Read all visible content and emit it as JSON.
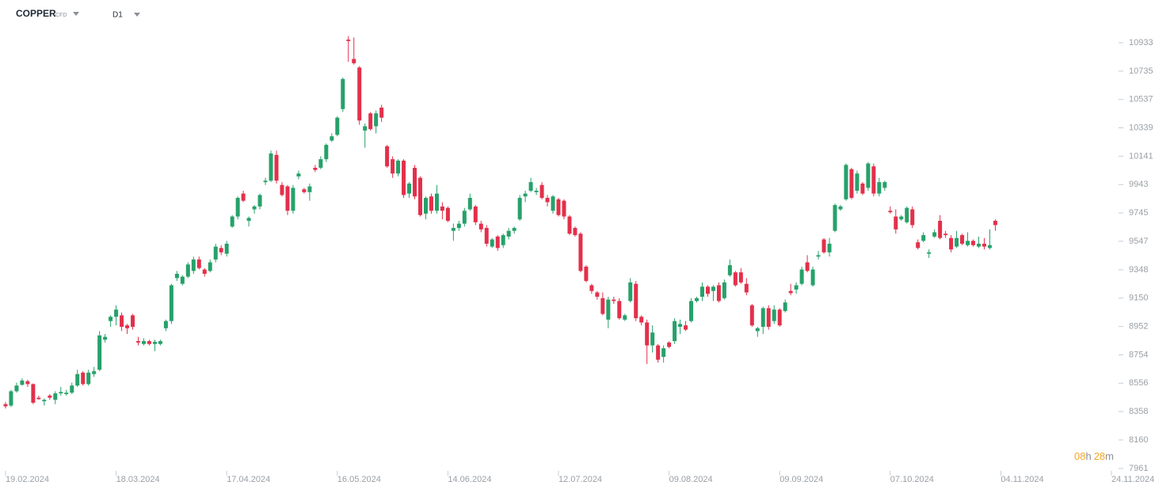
{
  "chart_data": {
    "type": "candlestick",
    "instrument": "COPPER",
    "instrument_type": "CFD",
    "timeframe": "D1",
    "countdown": {
      "hours": "08",
      "hours_unit": "h",
      "minutes": "28",
      "minutes_unit": "m"
    },
    "up_color": "#26a16a",
    "down_color": "#e3304b",
    "ylim": [
      7961,
      11038
    ],
    "yticks": [
      7961,
      8160,
      8358,
      8556,
      8754,
      8952,
      9150,
      9348,
      9547,
      9745,
      9943,
      10141,
      10339,
      10537,
      10735,
      10933
    ],
    "xlim": [
      -1,
      201
    ],
    "xticks": [
      {
        "value": 0,
        "label": "19.02.2024"
      },
      {
        "value": 20,
        "label": "18.03.2024"
      },
      {
        "value": 40,
        "label": "17.04.2024"
      },
      {
        "value": 60,
        "label": "16.05.2024"
      },
      {
        "value": 80,
        "label": "14.06.2024"
      },
      {
        "value": 100,
        "label": "12.07.2024"
      },
      {
        "value": 120,
        "label": "09.08.2024"
      },
      {
        "value": 140,
        "label": "09.09.2024"
      },
      {
        "value": 160,
        "label": "07.10.2024"
      },
      {
        "value": 180,
        "label": "04.11.2024"
      },
      {
        "value": 200,
        "label": "24.11.2024"
      }
    ],
    "ohlc": [
      [
        8410,
        8425,
        8380,
        8395
      ],
      [
        8400,
        8510,
        8390,
        8500
      ],
      [
        8500,
        8560,
        8490,
        8540
      ],
      [
        8545,
        8590,
        8540,
        8575
      ],
      [
        8570,
        8580,
        8530,
        8550
      ],
      [
        8550,
        8555,
        8410,
        8420
      ],
      [
        8455,
        8470,
        8440,
        8445
      ],
      [
        8430,
        8450,
        8400,
        8440
      ],
      [
        8470,
        8480,
        8440,
        8455
      ],
      [
        8440,
        8500,
        8410,
        8485
      ],
      [
        8485,
        8530,
        8470,
        8495
      ],
      [
        8480,
        8510,
        8470,
        8490
      ],
      [
        8490,
        8560,
        8480,
        8540
      ],
      [
        8540,
        8650,
        8530,
        8620
      ],
      [
        8630,
        8640,
        8540,
        8550
      ],
      [
        8550,
        8650,
        8540,
        8630
      ],
      [
        8620,
        8670,
        8600,
        8640
      ],
      [
        8650,
        8920,
        8640,
        8890
      ],
      [
        8860,
        8900,
        8840,
        8880
      ],
      [
        8990,
        9030,
        8950,
        9020
      ],
      [
        9020,
        9100,
        8960,
        9070
      ],
      [
        9030,
        9050,
        8920,
        8950
      ],
      [
        8960,
        8970,
        8900,
        8940
      ],
      [
        9030,
        9040,
        8930,
        8950
      ],
      [
        8850,
        8880,
        8820,
        8840
      ],
      [
        8830,
        8870,
        8820,
        8850
      ],
      [
        8850,
        8860,
        8820,
        8830
      ],
      [
        8830,
        8860,
        8780,
        8845
      ],
      [
        8830,
        8860,
        8820,
        8850
      ],
      [
        8940,
        9000,
        8920,
        8990
      ],
      [
        8990,
        9250,
        8970,
        9240
      ],
      [
        9290,
        9340,
        9270,
        9320
      ],
      [
        9250,
        9310,
        9240,
        9300
      ],
      [
        9300,
        9400,
        9290,
        9385
      ],
      [
        9340,
        9440,
        9320,
        9420
      ],
      [
        9420,
        9440,
        9350,
        9360
      ],
      [
        9350,
        9360,
        9300,
        9320
      ],
      [
        9340,
        9420,
        9330,
        9400
      ],
      [
        9420,
        9530,
        9400,
        9510
      ],
      [
        9500,
        9520,
        9450,
        9470
      ],
      [
        9460,
        9550,
        9440,
        9530
      ],
      [
        9650,
        9730,
        9640,
        9720
      ],
      [
        9720,
        9860,
        9700,
        9850
      ],
      [
        9880,
        9900,
        9820,
        9830
      ],
      [
        9690,
        9720,
        9650,
        9710
      ],
      [
        9770,
        9800,
        9740,
        9790
      ],
      [
        9790,
        9880,
        9770,
        9870
      ],
      [
        9960,
        9990,
        9940,
        9970
      ],
      [
        9970,
        10180,
        9960,
        10160
      ],
      [
        10150,
        10180,
        9950,
        9970
      ],
      [
        9940,
        9960,
        9860,
        9870
      ],
      [
        9930,
        9940,
        9730,
        9760
      ],
      [
        9760,
        9940,
        9740,
        9920
      ],
      [
        10000,
        10040,
        9980,
        10020
      ],
      [
        9910,
        9920,
        9880,
        9890
      ],
      [
        9890,
        9950,
        9830,
        9930
      ],
      [
        10060,
        10080,
        10030,
        10045
      ],
      [
        10060,
        10140,
        10050,
        10120
      ],
      [
        10120,
        10230,
        10100,
        10220
      ],
      [
        10250,
        10300,
        10240,
        10280
      ],
      [
        10290,
        10420,
        10280,
        10410
      ],
      [
        10470,
        10690,
        10450,
        10680
      ],
      [
        10955,
        10980,
        10800,
        10945
      ],
      [
        10820,
        10970,
        10780,
        10790
      ],
      [
        10760,
        10770,
        10360,
        10390
      ],
      [
        10320,
        10370,
        10200,
        10350
      ],
      [
        10440,
        10450,
        10320,
        10330
      ],
      [
        10350,
        10460,
        10300,
        10440
      ],
      [
        10480,
        10500,
        10380,
        10410
      ],
      [
        10210,
        10220,
        10060,
        10070
      ],
      [
        10120,
        10140,
        9990,
        10020
      ],
      [
        10020,
        10120,
        10000,
        10110
      ],
      [
        10110,
        10120,
        9850,
        9870
      ],
      [
        9880,
        9960,
        9850,
        9950
      ],
      [
        10060,
        10080,
        9840,
        9860
      ],
      [
        9990,
        10000,
        9720,
        9730
      ],
      [
        9740,
        9860,
        9700,
        9850
      ],
      [
        9860,
        9880,
        9740,
        9760
      ],
      [
        9760,
        9940,
        9740,
        9880
      ],
      [
        9790,
        9820,
        9700,
        9760
      ],
      [
        9780,
        9790,
        9680,
        9690
      ],
      [
        9620,
        9670,
        9550,
        9640
      ],
      [
        9640,
        9690,
        9620,
        9670
      ],
      [
        9670,
        9780,
        9650,
        9760
      ],
      [
        9770,
        9880,
        9760,
        9850
      ],
      [
        9790,
        9800,
        9660,
        9680
      ],
      [
        9670,
        9690,
        9610,
        9630
      ],
      [
        9640,
        9660,
        9510,
        9530
      ],
      [
        9510,
        9570,
        9500,
        9560
      ],
      [
        9580,
        9590,
        9480,
        9500
      ],
      [
        9520,
        9600,
        9500,
        9590
      ],
      [
        9580,
        9640,
        9560,
        9620
      ],
      [
        9620,
        9650,
        9600,
        9640
      ],
      [
        9700,
        9870,
        9690,
        9850
      ],
      [
        9860,
        9900,
        9820,
        9880
      ],
      [
        9900,
        9990,
        9890,
        9960
      ],
      [
        9890,
        9920,
        9870,
        9900
      ],
      [
        9940,
        9960,
        9840,
        9850
      ],
      [
        9850,
        9870,
        9790,
        9820
      ],
      [
        9760,
        9870,
        9740,
        9860
      ],
      [
        9840,
        9850,
        9720,
        9730
      ],
      [
        9830,
        9840,
        9700,
        9720
      ],
      [
        9720,
        9730,
        9590,
        9600
      ],
      [
        9640,
        9650,
        9580,
        9590
      ],
      [
        9600,
        9610,
        9330,
        9340
      ],
      [
        9370,
        9380,
        9260,
        9270
      ],
      [
        9240,
        9250,
        9180,
        9200
      ],
      [
        9190,
        9200,
        9140,
        9160
      ],
      [
        9150,
        9190,
        9030,
        9040
      ],
      [
        9000,
        9160,
        8940,
        9140
      ],
      [
        9140,
        9160,
        9110,
        9130
      ],
      [
        9130,
        9150,
        9000,
        9010
      ],
      [
        9000,
        9040,
        8990,
        9030
      ],
      [
        9130,
        9290,
        9120,
        9260
      ],
      [
        9250,
        9270,
        8990,
        9010
      ],
      [
        9020,
        9030,
        8960,
        8980
      ],
      [
        8980,
        9000,
        8690,
        8820
      ],
      [
        8820,
        8960,
        8770,
        8910
      ],
      [
        8820,
        8830,
        8700,
        8720
      ],
      [
        8740,
        8820,
        8700,
        8800
      ],
      [
        8840,
        8850,
        8800,
        8810
      ],
      [
        8850,
        9010,
        8830,
        8990
      ],
      [
        8950,
        9000,
        8900,
        8970
      ],
      [
        8960,
        8990,
        8920,
        8930
      ],
      [
        8990,
        9150,
        8980,
        9130
      ],
      [
        9130,
        9160,
        9120,
        9150
      ],
      [
        9160,
        9260,
        9130,
        9230
      ],
      [
        9230,
        9240,
        9160,
        9180
      ],
      [
        9200,
        9240,
        9130,
        9230
      ],
      [
        9240,
        9260,
        9120,
        9130
      ],
      [
        9150,
        9280,
        9140,
        9260
      ],
      [
        9310,
        9420,
        9300,
        9380
      ],
      [
        9330,
        9340,
        9230,
        9240
      ],
      [
        9330,
        9360,
        9250,
        9260
      ],
      [
        9250,
        9290,
        9170,
        9190
      ],
      [
        9100,
        9110,
        8950,
        8960
      ],
      [
        8920,
        8950,
        8880,
        8940
      ],
      [
        8950,
        9090,
        8900,
        9080
      ],
      [
        9080,
        9100,
        8930,
        8950
      ],
      [
        8990,
        9100,
        8970,
        9070
      ],
      [
        9070,
        9080,
        8950,
        8960
      ],
      [
        9060,
        9140,
        9050,
        9120
      ],
      [
        9200,
        9250,
        9170,
        9185
      ],
      [
        9210,
        9260,
        9180,
        9240
      ],
      [
        9250,
        9370,
        9240,
        9350
      ],
      [
        9400,
        9450,
        9330,
        9340
      ],
      [
        9240,
        9370,
        9230,
        9350
      ],
      [
        9440,
        9480,
        9420,
        9450
      ],
      [
        9560,
        9570,
        9460,
        9470
      ],
      [
        9470,
        9570,
        9440,
        9530
      ],
      [
        9620,
        9810,
        9610,
        9800
      ],
      [
        9770,
        9800,
        9760,
        9790
      ],
      [
        9840,
        10090,
        9830,
        10080
      ],
      [
        10050,
        10060,
        9840,
        9850
      ],
      [
        9900,
        10040,
        9880,
        10020
      ],
      [
        9950,
        9960,
        9870,
        9880
      ],
      [
        9920,
        10100,
        9900,
        10090
      ],
      [
        10070,
        10090,
        9860,
        9880
      ],
      [
        9880,
        9990,
        9860,
        9960
      ],
      [
        9920,
        9970,
        9900,
        9960
      ],
      [
        9760,
        9790,
        9740,
        9750
      ],
      [
        9720,
        9770,
        9600,
        9630
      ],
      [
        9700,
        9730,
        9690,
        9720
      ],
      [
        9680,
        9790,
        9670,
        9780
      ],
      [
        9770,
        9790,
        9640,
        9660
      ],
      [
        9540,
        9560,
        9490,
        9500
      ],
      [
        9550,
        9610,
        9540,
        9590
      ],
      [
        9460,
        9490,
        9430,
        9470
      ],
      [
        9580,
        9630,
        9570,
        9610
      ],
      [
        9690,
        9730,
        9560,
        9570
      ],
      [
        9600,
        9620,
        9570,
        9590
      ],
      [
        9570,
        9590,
        9470,
        9490
      ],
      [
        9510,
        9620,
        9500,
        9570
      ],
      [
        9590,
        9600,
        9520,
        9530
      ],
      [
        9520,
        9610,
        9510,
        9550
      ],
      [
        9550,
        9560,
        9510,
        9520
      ],
      [
        9510,
        9580,
        9500,
        9530
      ],
      [
        9530,
        9570,
        9490,
        9510
      ],
      [
        9500,
        9630,
        9490,
        9520
      ],
      [
        9690,
        9700,
        9620,
        9660
      ]
    ]
  }
}
